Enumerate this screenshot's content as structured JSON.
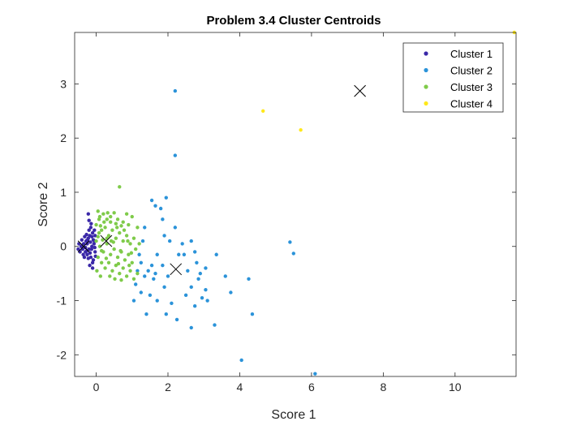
{
  "chart_data": {
    "type": "scatter",
    "title": "Problem 3.4 Cluster Centroids",
    "xlabel": "Score 1",
    "ylabel": "Score 2",
    "xlim": [
      -0.6,
      11.7
    ],
    "ylim": [
      -2.4,
      3.95
    ],
    "xticks": [
      0,
      2,
      4,
      6,
      8,
      10
    ],
    "xtick_labels": [
      "0",
      "2",
      "4",
      "6",
      "8",
      "10"
    ],
    "yticks": [
      -2,
      -1,
      0,
      1,
      2,
      3
    ],
    "ytick_labels": [
      "-2",
      "-1",
      "0",
      "1",
      "2",
      "3"
    ],
    "grid": false,
    "legend_position": "top-right",
    "series": [
      {
        "name": "Cluster 1",
        "color": "#3a28a8",
        "points": [
          [
            -0.42,
            0.0
          ],
          [
            -0.38,
            -0.05
          ],
          [
            -0.35,
            0.05
          ],
          [
            -0.3,
            -0.1
          ],
          [
            -0.28,
            0.1
          ],
          [
            -0.25,
            -0.15
          ],
          [
            -0.22,
            0.15
          ],
          [
            -0.2,
            -0.05
          ],
          [
            -0.18,
            0.2
          ],
          [
            -0.15,
            -0.2
          ],
          [
            -0.12,
            0.0
          ],
          [
            -0.1,
            0.25
          ],
          [
            -0.08,
            -0.25
          ],
          [
            -0.05,
            0.1
          ],
          [
            -0.03,
            -0.1
          ],
          [
            -0.45,
            -0.1
          ],
          [
            -0.4,
            0.12
          ],
          [
            -0.33,
            -0.2
          ],
          [
            -0.27,
            0.22
          ],
          [
            -0.2,
            0.3
          ],
          [
            -0.15,
            0.35
          ],
          [
            -0.1,
            -0.3
          ],
          [
            -0.05,
            0.3
          ],
          [
            -0.02,
            -0.18
          ],
          [
            -0.25,
            0.05
          ],
          [
            -0.32,
            0.18
          ],
          [
            -0.17,
            -0.12
          ],
          [
            -0.12,
            0.18
          ],
          [
            -0.36,
            -0.15
          ],
          [
            -0.22,
            -0.22
          ],
          [
            -0.08,
            0.12
          ],
          [
            -0.04,
            -0.02
          ],
          [
            -0.14,
            0.42
          ],
          [
            -0.2,
            0.48
          ],
          [
            -0.22,
            0.6
          ],
          [
            -0.18,
            -0.35
          ],
          [
            -0.1,
            -0.4
          ],
          [
            -0.5,
            -0.05
          ],
          [
            -0.48,
            0.05
          ],
          [
            -0.3,
            -0.02
          ],
          [
            -0.26,
            -0.08
          ],
          [
            -0.06,
            0.05
          ],
          [
            -0.03,
            0.2
          ],
          [
            -0.13,
            -0.05
          ],
          [
            -0.24,
            0.12
          ],
          [
            -0.16,
            0.08
          ]
        ]
      },
      {
        "name": "Cluster 2",
        "color": "#2b93d9",
        "points": [
          [
            2.2,
            2.87
          ],
          [
            2.2,
            1.68
          ],
          [
            1.95,
            0.9
          ],
          [
            1.55,
            0.85
          ],
          [
            1.65,
            0.75
          ],
          [
            1.8,
            0.7
          ],
          [
            1.85,
            0.5
          ],
          [
            1.35,
            0.35
          ],
          [
            2.2,
            0.35
          ],
          [
            1.9,
            0.2
          ],
          [
            2.05,
            0.1
          ],
          [
            2.4,
            0.05
          ],
          [
            2.45,
            -0.15
          ],
          [
            2.65,
            0.1
          ],
          [
            2.75,
            -0.1
          ],
          [
            2.8,
            -0.3
          ],
          [
            3.05,
            -0.4
          ],
          [
            3.35,
            -0.15
          ],
          [
            1.2,
            -0.15
          ],
          [
            1.25,
            -0.3
          ],
          [
            1.45,
            -0.45
          ],
          [
            1.35,
            -0.55
          ],
          [
            1.6,
            -0.6
          ],
          [
            1.65,
            -0.5
          ],
          [
            1.85,
            -0.35
          ],
          [
            1.9,
            -0.75
          ],
          [
            1.1,
            -0.7
          ],
          [
            1.25,
            -0.85
          ],
          [
            1.5,
            -0.9
          ],
          [
            1.7,
            -1.0
          ],
          [
            1.95,
            -1.25
          ],
          [
            2.1,
            -1.05
          ],
          [
            2.25,
            -1.35
          ],
          [
            2.5,
            -0.9
          ],
          [
            2.65,
            -0.75
          ],
          [
            2.75,
            -1.1
          ],
          [
            2.9,
            -0.5
          ],
          [
            3.05,
            -0.8
          ],
          [
            3.1,
            -1.0
          ],
          [
            3.3,
            -1.45
          ],
          [
            3.75,
            -0.85
          ],
          [
            4.25,
            -0.6
          ],
          [
            4.35,
            -1.25
          ],
          [
            2.65,
            -1.5
          ],
          [
            4.05,
            -2.1
          ],
          [
            6.1,
            -2.35
          ],
          [
            5.4,
            0.08
          ],
          [
            5.5,
            -0.13
          ],
          [
            1.05,
            -1.0
          ],
          [
            1.4,
            -1.25
          ],
          [
            1.55,
            -0.35
          ],
          [
            2.0,
            -0.55
          ],
          [
            2.3,
            -0.15
          ],
          [
            1.7,
            -0.15
          ],
          [
            2.55,
            -0.45
          ],
          [
            2.95,
            -0.95
          ],
          [
            1.15,
            -0.45
          ],
          [
            1.3,
            0.1
          ],
          [
            2.85,
            -0.6
          ],
          [
            3.6,
            -0.55
          ]
        ]
      },
      {
        "name": "Cluster 3",
        "color": "#7fcb4a",
        "points": [
          [
            0.65,
            1.1
          ],
          [
            0.05,
            0.65
          ],
          [
            0.1,
            0.55
          ],
          [
            0.2,
            0.6
          ],
          [
            0.3,
            0.5
          ],
          [
            0.4,
            0.55
          ],
          [
            0.5,
            0.62
          ],
          [
            0.6,
            0.5
          ],
          [
            0.75,
            0.45
          ],
          [
            0.85,
            0.6
          ],
          [
            0.9,
            0.4
          ],
          [
            1.0,
            0.55
          ],
          [
            1.15,
            0.35
          ],
          [
            0.0,
            0.4
          ],
          [
            0.08,
            0.25
          ],
          [
            0.15,
            0.3
          ],
          [
            0.25,
            0.35
          ],
          [
            0.35,
            0.2
          ],
          [
            0.45,
            0.3
          ],
          [
            0.55,
            0.15
          ],
          [
            0.65,
            0.25
          ],
          [
            0.75,
            0.1
          ],
          [
            0.85,
            0.2
          ],
          [
            0.95,
            0.05
          ],
          [
            1.05,
            0.15
          ],
          [
            1.1,
            -0.05
          ],
          [
            0.0,
            0.1
          ],
          [
            0.1,
            0.0
          ],
          [
            0.2,
            -0.1
          ],
          [
            0.3,
            0.05
          ],
          [
            0.4,
            -0.15
          ],
          [
            0.5,
            -0.05
          ],
          [
            0.6,
            -0.2
          ],
          [
            0.7,
            -0.1
          ],
          [
            0.8,
            -0.25
          ],
          [
            0.9,
            -0.15
          ],
          [
            1.0,
            -0.3
          ],
          [
            0.05,
            -0.2
          ],
          [
            0.15,
            -0.3
          ],
          [
            0.25,
            -0.4
          ],
          [
            0.35,
            -0.3
          ],
          [
            0.45,
            -0.45
          ],
          [
            0.55,
            -0.35
          ],
          [
            0.65,
            -0.5
          ],
          [
            0.75,
            -0.4
          ],
          [
            0.85,
            -0.55
          ],
          [
            0.95,
            -0.45
          ],
          [
            1.05,
            -0.6
          ],
          [
            1.15,
            -0.5
          ],
          [
            0.02,
            -0.45
          ],
          [
            0.12,
            -0.55
          ],
          [
            0.4,
            0.45
          ],
          [
            0.55,
            0.42
          ],
          [
            0.7,
            0.38
          ],
          [
            0.18,
            0.12
          ],
          [
            0.28,
            -0.22
          ],
          [
            0.48,
            0.08
          ],
          [
            0.62,
            -0.32
          ],
          [
            0.78,
            0.3
          ],
          [
            0.92,
            -0.35
          ],
          [
            1.2,
            0.05
          ],
          [
            0.08,
            0.5
          ],
          [
            0.22,
            0.45
          ],
          [
            0.32,
            0.62
          ],
          [
            0.42,
            0.1
          ],
          [
            0.58,
            0.35
          ],
          [
            0.68,
            -0.08
          ],
          [
            0.88,
            0.1
          ],
          [
            0.98,
            -0.12
          ],
          [
            0.15,
            -0.08
          ],
          [
            0.05,
            0.18
          ],
          [
            0.38,
            -0.55
          ],
          [
            0.52,
            -0.6
          ],
          [
            0.7,
            -0.62
          ],
          [
            0.3,
            0.15
          ],
          [
            0.12,
            0.38
          ]
        ]
      },
      {
        "name": "Cluster 4",
        "color": "#ffe81a",
        "points": [
          [
            4.65,
            2.5
          ],
          [
            5.7,
            2.15
          ],
          [
            11.65,
            3.95
          ]
        ]
      }
    ],
    "centroids": [
      [
        -0.35,
        0.0
      ],
      [
        0.28,
        0.1
      ],
      [
        2.22,
        -0.42
      ],
      [
        7.35,
        2.87
      ]
    ],
    "centroid_marker": "x",
    "centroid_color": "#000000"
  }
}
